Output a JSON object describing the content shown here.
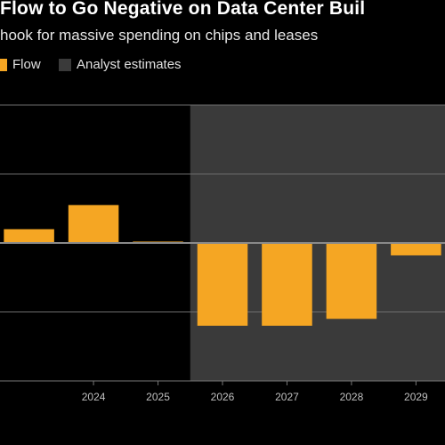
{
  "title": "Flow to Go Negative on Data Center Buil",
  "subtitle": "hook for massive spending on chips and leases",
  "legend": [
    {
      "name": "Flow",
      "color": "#f5a623"
    },
    {
      "name": "Analyst estimates",
      "color": "#3a3a3a"
    }
  ],
  "colors": {
    "bar": "#f5a623",
    "estimate_band": "#3a3a3a",
    "background": "#000000",
    "grid": "#6e6e6e"
  },
  "chart_data": {
    "type": "bar",
    "title": "Flow to Go Negative on Data Center Buil",
    "subtitle": "hook for massive spending on chips and leases",
    "categories": [
      "2024",
      "2025",
      "2026",
      "2027",
      "2028",
      "2029"
    ],
    "tick_labels": [
      "2024",
      "2025",
      "2026",
      "2027",
      "2028",
      "2029"
    ],
    "series": [
      {
        "name": "Flow",
        "x": [
          2023,
          2024,
          2025,
          2026,
          2027,
          2028,
          2029
        ],
        "values": [
          0.2,
          0.55,
          0.02,
          -1.2,
          -1.2,
          -1.1,
          -0.18
        ]
      }
    ],
    "estimates_from": 2026,
    "xlim": [
      2022.55,
      2029.45
    ],
    "ylim": [
      -2.0,
      2.0
    ],
    "gridlines": [
      -1.0,
      0,
      1.0
    ],
    "grid": true,
    "legend_position": "top-left",
    "xlabel": "",
    "ylabel": ""
  }
}
